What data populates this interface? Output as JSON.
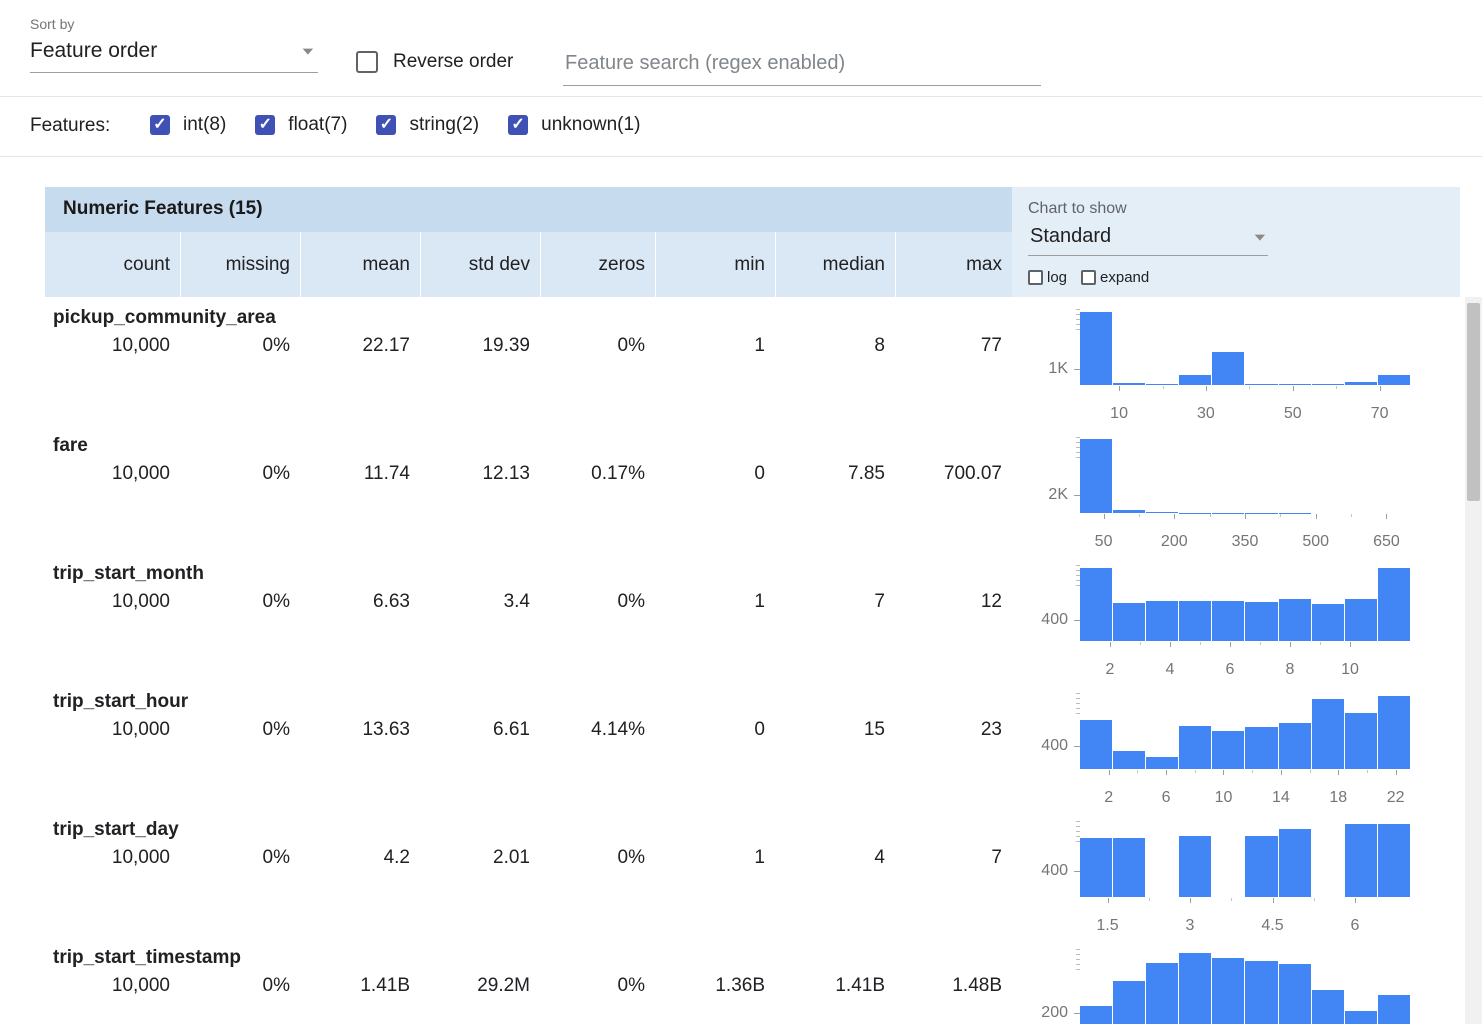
{
  "icons": {
    "dropdown_arrow": "▼",
    "check": "✓"
  },
  "colors": {
    "bar": "#4285f4",
    "checkbox_checked": "#3f51b5",
    "title_band": "#c6dbee",
    "column_header": "#dae7f4",
    "chart_panel": "#e4eef7"
  },
  "toolbar": {
    "sort_by_label": "Sort by",
    "sort_by_value": "Feature order",
    "reverse_order_label": "Reverse order",
    "search_placeholder": "Feature search (regex enabled)"
  },
  "features_filter": {
    "label": "Features:",
    "options": [
      {
        "label": "int(8)",
        "checked": true
      },
      {
        "label": "float(7)",
        "checked": true
      },
      {
        "label": "string(2)",
        "checked": true
      },
      {
        "label": "unknown(1)",
        "checked": true
      }
    ]
  },
  "table": {
    "title": "Numeric Features (15)",
    "columns": [
      "count",
      "missing",
      "mean",
      "std dev",
      "zeros",
      "min",
      "median",
      "max"
    ],
    "chart_controls": {
      "label": "Chart to show",
      "selected": "Standard",
      "log_label": "log",
      "log_checked": false,
      "expand_label": "expand",
      "expand_checked": false
    },
    "rows": [
      {
        "name": "pickup_community_area",
        "values": [
          "10,000",
          "0%",
          "22.17",
          "19.39",
          "0%",
          "1",
          "8",
          "77"
        ]
      },
      {
        "name": "fare",
        "values": [
          "10,000",
          "0%",
          "11.74",
          "12.13",
          "0.17%",
          "0",
          "7.85",
          "700.07"
        ]
      },
      {
        "name": "trip_start_month",
        "values": [
          "10,000",
          "0%",
          "6.63",
          "3.4",
          "0%",
          "1",
          "7",
          "12"
        ]
      },
      {
        "name": "trip_start_hour",
        "values": [
          "10,000",
          "0%",
          "13.63",
          "6.61",
          "4.14%",
          "0",
          "15",
          "23"
        ]
      },
      {
        "name": "trip_start_day",
        "values": [
          "10,000",
          "0%",
          "4.2",
          "2.01",
          "0%",
          "1",
          "4",
          "7"
        ]
      },
      {
        "name": "trip_start_timestamp",
        "values": [
          "10,000",
          "0%",
          "1.41B",
          "29.2M",
          "0%",
          "1.36B",
          "1.41B",
          "1.48B"
        ]
      }
    ]
  },
  "chart_data": [
    {
      "feature": "pickup_community_area",
      "type": "bar",
      "x_range": [
        1,
        77
      ],
      "x_ticks": [
        10,
        30,
        50,
        70
      ],
      "y_tick": {
        "value": 1000,
        "label": "1K"
      },
      "ylim": [
        0,
        4900
      ],
      "values": [
        4600,
        120,
        80,
        600,
        2050,
        80,
        50,
        40,
        200,
        620
      ]
    },
    {
      "feature": "fare",
      "type": "bar",
      "x_range": [
        0,
        700
      ],
      "x_ticks": [
        50,
        200,
        350,
        500,
        650
      ],
      "y_tick": {
        "value": 2000,
        "label": "2K"
      },
      "ylim": [
        0,
        8800
      ],
      "values": [
        8300,
        300,
        80,
        40,
        25,
        15,
        10,
        8,
        5,
        4
      ]
    },
    {
      "feature": "trip_start_month",
      "type": "bar",
      "x_range": [
        1,
        12
      ],
      "x_ticks": [
        2,
        4,
        6,
        8,
        10
      ],
      "y_tick": {
        "value": 400,
        "label": "400"
      },
      "ylim": [
        0,
        1480
      ],
      "values": [
        1390,
        720,
        760,
        755,
        760,
        740,
        800,
        700,
        800,
        1390
      ]
    },
    {
      "feature": "trip_start_hour",
      "type": "bar",
      "x_range": [
        0,
        23
      ],
      "x_ticks": [
        2,
        6,
        10,
        14,
        18,
        22
      ],
      "y_tick": {
        "value": 400,
        "label": "400"
      },
      "ylim": [
        0,
        1380
      ],
      "values": [
        860,
        320,
        210,
        760,
        670,
        740,
        820,
        1240,
        990,
        1300
      ]
    },
    {
      "feature": "trip_start_day",
      "type": "bar",
      "x_range": [
        1,
        7
      ],
      "x_ticks": [
        1.5,
        3,
        4.5,
        6
      ],
      "y_tick": {
        "value": 400,
        "label": "400"
      },
      "ylim": [
        0,
        1210
      ],
      "values": [
        915,
        915,
        0,
        950,
        0,
        950,
        1050,
        0,
        1140,
        1140
      ]
    },
    {
      "feature": "trip_start_timestamp",
      "type": "bar",
      "x_range": null,
      "x_ticks": [],
      "y_tick": {
        "value": 200,
        "label": "200"
      },
      "ylim": [
        0,
        1250
      ],
      "values": [
        300,
        700,
        1000,
        1150,
        1080,
        1020,
        980,
        560,
        230,
        480
      ]
    }
  ]
}
